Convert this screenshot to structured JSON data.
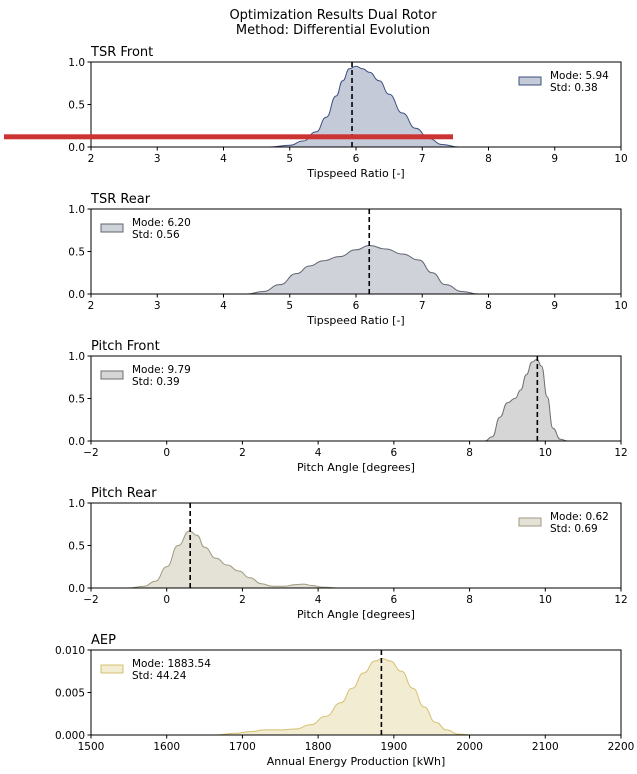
{
  "figure": {
    "title_line1": "Optimization Results Dual Rotor",
    "title_line2": "Method: Differential Evolution"
  },
  "chart_data": [
    {
      "type": "area",
      "title": "TSR Front",
      "xlabel": "Tipspeed Ratio [-]",
      "ylabel": "",
      "xlim": [
        2,
        10
      ],
      "ylim": [
        0,
        1.0
      ],
      "xticks": [
        "2",
        "3",
        "4",
        "5",
        "6",
        "7",
        "8",
        "9",
        "10"
      ],
      "yticks": [
        "0.0",
        "0.5",
        "1.0"
      ],
      "legend": {
        "position": "right",
        "mode_text": "Mode: 5.94",
        "std_text": "Std: 0.38"
      },
      "mode": 5.94,
      "std": 0.38,
      "fill_color": "#c5cad8",
      "line_color": "#3c4f80",
      "x": [
        4.7,
        5.0,
        5.2,
        5.4,
        5.55,
        5.7,
        5.8,
        5.9,
        6.0,
        6.1,
        6.2,
        6.35,
        6.5,
        6.7,
        6.9,
        7.1,
        7.3,
        7.55
      ],
      "y": [
        0.0,
        0.02,
        0.07,
        0.18,
        0.35,
        0.6,
        0.78,
        0.92,
        0.95,
        0.92,
        0.88,
        0.78,
        0.62,
        0.4,
        0.22,
        0.1,
        0.03,
        0.0
      ]
    },
    {
      "type": "area",
      "title": "TSR Rear",
      "xlabel": "Tipspeed Ratio [-]",
      "ylabel": "",
      "xlim": [
        2,
        10
      ],
      "ylim": [
        0,
        1.0
      ],
      "xticks": [
        "2",
        "3",
        "4",
        "5",
        "6",
        "7",
        "8",
        "9",
        "10"
      ],
      "yticks": [
        "0.0",
        "0.5",
        "1.0"
      ],
      "legend": {
        "position": "left",
        "mode_text": "Mode: 6.20",
        "std_text": "Std: 0.56"
      },
      "mode": 6.2,
      "std": 0.56,
      "fill_color": "#d0d2da",
      "line_color": "#5f6470",
      "x": [
        4.35,
        4.6,
        4.85,
        5.1,
        5.3,
        5.5,
        5.75,
        6.0,
        6.2,
        6.45,
        6.7,
        6.95,
        7.15,
        7.35,
        7.6,
        7.85
      ],
      "y": [
        0.0,
        0.03,
        0.11,
        0.24,
        0.33,
        0.39,
        0.44,
        0.52,
        0.57,
        0.53,
        0.47,
        0.4,
        0.25,
        0.11,
        0.03,
        0.0
      ]
    },
    {
      "type": "area",
      "title": "Pitch Front",
      "xlabel": "Pitch Angle [degrees]",
      "ylabel": "",
      "xlim": [
        -2,
        12
      ],
      "ylim": [
        0,
        1.0
      ],
      "xticks": [
        "−2",
        "0",
        "2",
        "4",
        "6",
        "8",
        "10",
        "12"
      ],
      "yticks": [
        "0.0",
        "0.5",
        "1.0"
      ],
      "legend": {
        "position": "left",
        "mode_text": "Mode: 9.79",
        "std_text": "Std: 0.39"
      },
      "mode": 9.79,
      "std": 0.39,
      "fill_color": "#d6d6d6",
      "line_color": "#6e6e6e",
      "x": [
        8.4,
        8.6,
        8.8,
        9.0,
        9.2,
        9.35,
        9.5,
        9.65,
        9.78,
        9.9,
        10.05,
        10.2,
        10.4,
        10.6
      ],
      "y": [
        0.0,
        0.05,
        0.28,
        0.45,
        0.5,
        0.6,
        0.78,
        0.93,
        0.96,
        0.88,
        0.52,
        0.15,
        0.02,
        0.0
      ]
    },
    {
      "type": "area",
      "title": "Pitch Rear",
      "xlabel": "Pitch Angle [degrees]",
      "ylabel": "",
      "xlim": [
        -2,
        12
      ],
      "ylim": [
        0,
        1.0
      ],
      "xticks": [
        "−2",
        "0",
        "2",
        "4",
        "6",
        "8",
        "10",
        "12"
      ],
      "yticks": [
        "0.0",
        "0.5",
        "1.0"
      ],
      "legend": {
        "position": "right",
        "mode_text": "Mode: 0.62",
        "std_text": "Std: 0.69"
      },
      "mode": 0.62,
      "std": 0.69,
      "fill_color": "#e4e1d6",
      "line_color": "#9e9a80",
      "x": [
        -1.0,
        -0.6,
        -0.3,
        0.0,
        0.3,
        0.6,
        0.8,
        1.0,
        1.3,
        1.6,
        1.9,
        2.2,
        2.5,
        2.8,
        3.1,
        3.4,
        3.6,
        3.85,
        4.1,
        4.6
      ],
      "y": [
        0.0,
        0.02,
        0.08,
        0.25,
        0.5,
        0.67,
        0.62,
        0.48,
        0.35,
        0.27,
        0.2,
        0.12,
        0.05,
        0.02,
        0.02,
        0.04,
        0.045,
        0.03,
        0.01,
        0.0
      ]
    },
    {
      "type": "area",
      "title": "AEP",
      "xlabel": "Annual Energy Production [kWh]",
      "ylabel": "",
      "xlim": [
        1500,
        2200
      ],
      "ylim": [
        0,
        0.01
      ],
      "xticks": [
        "1500",
        "1600",
        "1700",
        "1800",
        "1900",
        "2000",
        "2100",
        "2200"
      ],
      "yticks": [
        "0.000",
        "0.005",
        "0.010"
      ],
      "legend": {
        "position": "left",
        "mode_text": "Mode: 1883.54",
        "std_text": "Std: 44.24"
      },
      "mode": 1883.54,
      "std": 44.24,
      "fill_color": "#f1ecd2",
      "line_color": "#d6c070",
      "x": [
        1665,
        1690,
        1710,
        1730,
        1750,
        1770,
        1790,
        1810,
        1830,
        1845,
        1860,
        1875,
        1885,
        1895,
        1910,
        1925,
        1940,
        1955,
        1970,
        1985,
        2005
      ],
      "y": [
        0.0,
        0.0002,
        0.0004,
        0.0006,
        0.0006,
        0.0007,
        0.0012,
        0.0022,
        0.0038,
        0.0055,
        0.0073,
        0.0087,
        0.009,
        0.0087,
        0.0075,
        0.0055,
        0.0033,
        0.0015,
        0.0006,
        0.0001,
        0.0
      ]
    }
  ],
  "overlay": {
    "highlight_color": "#cc3333",
    "highlight_value": 0.12
  }
}
